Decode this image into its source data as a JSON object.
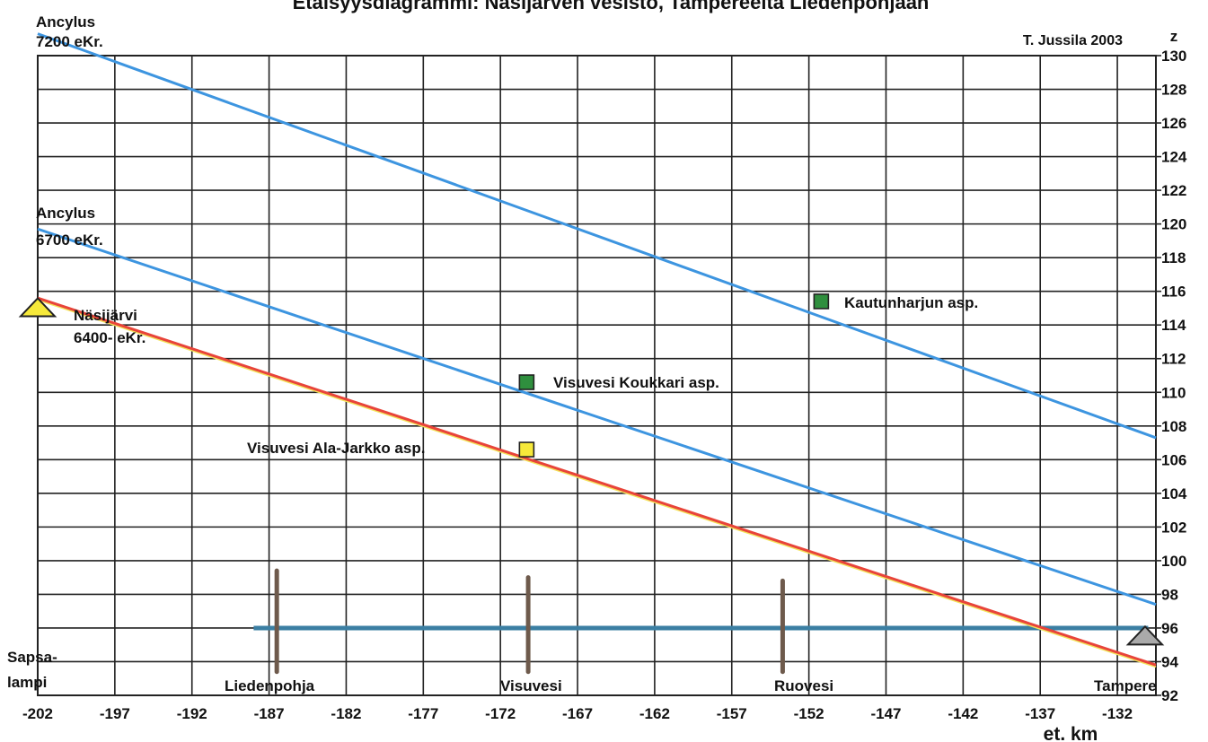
{
  "chart_data": {
    "type": "line",
    "title": "Etäisyysdiagrammi: Näsijärven vesistö, Tampereelta Liedenpohjaan",
    "credit": "T. Jussila 2003",
    "xlabel": "et. km",
    "ylabel": "z",
    "xlim": [
      -202,
      -129.5
    ],
    "ylim": [
      92,
      130
    ],
    "xticks": [
      -202,
      -197,
      -192,
      -187,
      -182,
      -177,
      -172,
      -167,
      -162,
      -157,
      -152,
      -147,
      -142,
      -137,
      -132
    ],
    "yticks": [
      92,
      94,
      96,
      98,
      100,
      102,
      104,
      106,
      108,
      110,
      112,
      114,
      116,
      118,
      120,
      122,
      124,
      126,
      128,
      130
    ],
    "grid": true,
    "colors": {
      "ancylus": "#3d95e0",
      "nasijarvi": "#e8443a",
      "water": "#3b7fa3",
      "marker_yellow": "#f6e93a",
      "marker_green": "#2f8f3e",
      "pole": "#6e5a4c"
    },
    "series": [
      {
        "name_line1": "Ancylus",
        "name_line2": "7200 eKr.",
        "color": "#3d95e0",
        "x": [
          -202,
          -129.5
        ],
        "y": [
          131.3,
          107.3
        ]
      },
      {
        "name_line1": "Ancylus",
        "name_line2": "6700 eKr.",
        "color": "#3d95e0",
        "x": [
          -202,
          -129.5
        ],
        "y": [
          119.7,
          97.4
        ]
      },
      {
        "name_line1": "Näsijärvi",
        "name_line2": "6400- eKr.",
        "color": "#e8443a",
        "x": [
          -202,
          -129.5
        ],
        "y": [
          115.6,
          93.8
        ]
      }
    ],
    "water_level": {
      "x": [
        -188,
        -130
      ],
      "y": [
        96,
        96
      ]
    },
    "points": [
      {
        "label": "Kautunharjun asp.",
        "x": -151.2,
        "y": 115.4,
        "color": "#2f8f3e"
      },
      {
        "label": "Visuvesi Koukkari asp.",
        "x": -170.3,
        "y": 110.6,
        "color": "#2f8f3e"
      },
      {
        "label": "Visuvesi Ala-Jarkko asp.",
        "x": -170.3,
        "y": 106.6,
        "color": "#f6e93a"
      }
    ],
    "places": [
      {
        "label": "Liedenpohja",
        "x": -186.5,
        "pole_top": 99.4,
        "pole_bottom": 93.4
      },
      {
        "label": "Visuvesi",
        "x": -170.2,
        "pole_top": 99.0,
        "pole_bottom": 93.4
      },
      {
        "label": "Ruovesi",
        "x": -153.7,
        "pole_top": 98.8,
        "pole_bottom": 93.4
      }
    ],
    "end_labels": [
      {
        "label_line1": "Sapsa-",
        "label_line2": "lampi"
      },
      {
        "label_line1": "Tampere"
      }
    ],
    "triangles": [
      {
        "x": -202,
        "y": 115.0,
        "color": "#f6e93a"
      },
      {
        "x": -130.2,
        "y": 95.5,
        "color": "#aaaaaa"
      }
    ]
  }
}
